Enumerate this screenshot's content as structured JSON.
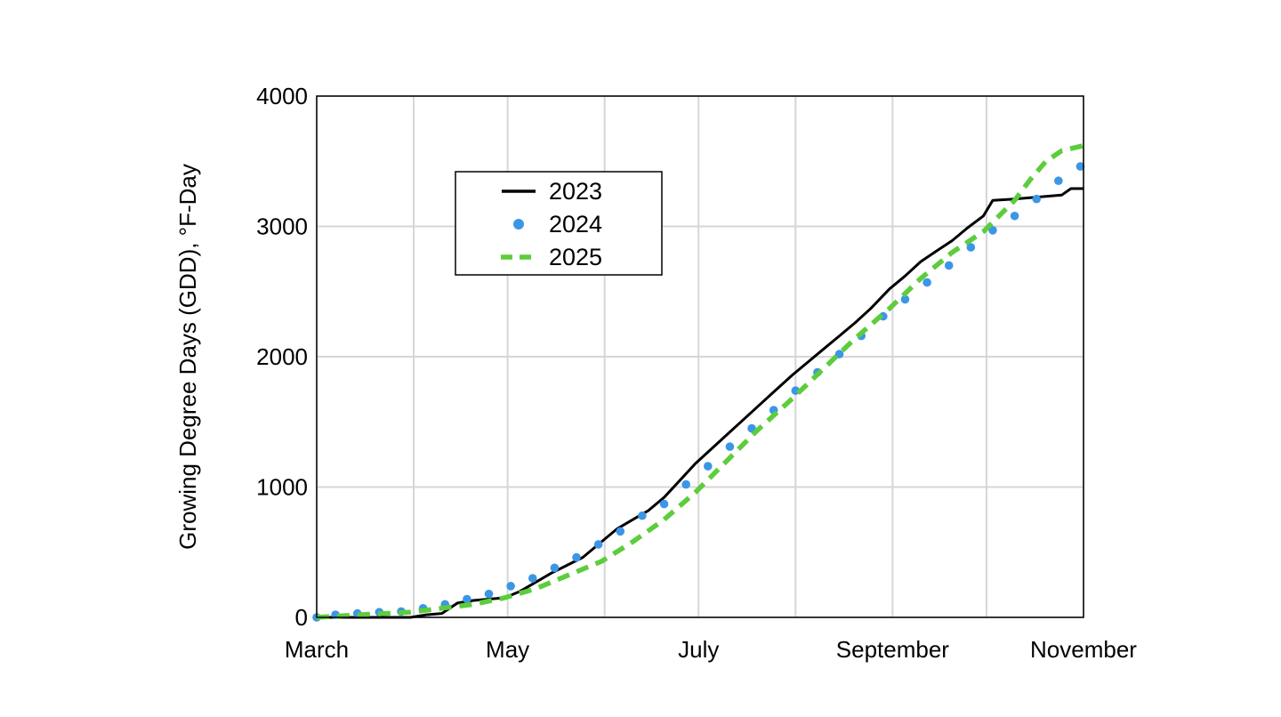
{
  "chart_data": {
    "type": "line",
    "title": "",
    "ylabel": "Growing Degree Days (GDD), °F-Day",
    "xlabel": "",
    "ylim": [
      0,
      4000
    ],
    "xlim": [
      "Mar 1",
      "Nov 1"
    ],
    "yticks": [
      0,
      1000,
      2000,
      3000,
      4000
    ],
    "xticks": [
      "March",
      "May",
      "July",
      "September",
      "November"
    ],
    "xtick_dates": [
      "Mar 1",
      "May 1",
      "Jul 1",
      "Sep 1",
      "Nov 1"
    ],
    "x_gridlines": [
      "Mar 1",
      "Apr 1",
      "May 1",
      "Jun 1",
      "Jul 1",
      "Aug 1",
      "Sep 1",
      "Oct 1",
      "Nov 1"
    ],
    "grid": true,
    "legend": {
      "position": "top-left",
      "entries": [
        "2023",
        "2024",
        "2025"
      ]
    },
    "series": [
      {
        "name": "2023",
        "style": "solid",
        "color": "#000000",
        "x": [
          "Mar 1",
          "Mar 10",
          "Mar 20",
          "Mar 31",
          "Apr 5",
          "Apr 10",
          "Apr 15",
          "Apr 20",
          "Apr 25",
          "Apr 30",
          "May 5",
          "May 10",
          "May 15",
          "May 20",
          "May 25",
          "May 31",
          "Jun 5",
          "Jun 10",
          "Jun 15",
          "Jun 20",
          "Jun 25",
          "Jun 30",
          "Jul 5",
          "Jul 10",
          "Jul 15",
          "Jul 20",
          "Jul 25",
          "Jul 31",
          "Aug 5",
          "Aug 10",
          "Aug 15",
          "Aug 20",
          "Aug 25",
          "Aug 31",
          "Sep 5",
          "Sep 10",
          "Sep 15",
          "Sep 20",
          "Sep 25",
          "Sep 30",
          "Oct 3",
          "Oct 10",
          "Oct 20",
          "Oct 25",
          "Oct 28",
          "Nov 1"
        ],
        "y": [
          0,
          0,
          0,
          0,
          20,
          30,
          110,
          130,
          140,
          150,
          200,
          270,
          340,
          400,
          460,
          580,
          680,
          750,
          820,
          920,
          1050,
          1180,
          1290,
          1400,
          1510,
          1620,
          1730,
          1860,
          1960,
          2060,
          2160,
          2260,
          2370,
          2520,
          2620,
          2730,
          2810,
          2890,
          2990,
          3080,
          3200,
          3210,
          3230,
          3240,
          3290,
          3290
        ]
      },
      {
        "name": "2024",
        "style": "dotted",
        "color": "#3c96e6",
        "x": [
          "Mar 1",
          "Mar 7",
          "Mar 14",
          "Mar 21",
          "Mar 28",
          "Apr 4",
          "Apr 11",
          "Apr 18",
          "Apr 25",
          "May 2",
          "May 9",
          "May 16",
          "May 23",
          "May 30",
          "Jun 6",
          "Jun 13",
          "Jun 20",
          "Jun 27",
          "Jul 4",
          "Jul 11",
          "Jul 18",
          "Jul 25",
          "Aug 1",
          "Aug 8",
          "Aug 15",
          "Aug 22",
          "Aug 29",
          "Sep 5",
          "Sep 12",
          "Sep 19",
          "Sep 26",
          "Oct 3",
          "Oct 10",
          "Oct 17",
          "Oct 24",
          "Oct 31"
        ],
        "y": [
          0,
          20,
          30,
          40,
          45,
          70,
          100,
          140,
          180,
          240,
          300,
          380,
          460,
          560,
          660,
          780,
          870,
          1020,
          1160,
          1310,
          1450,
          1590,
          1740,
          1880,
          2020,
          2160,
          2310,
          2440,
          2570,
          2700,
          2840,
          2970,
          3080,
          3210,
          3350,
          3460
        ]
      },
      {
        "name": "2025",
        "style": "dashed",
        "color": "#5ccd3c",
        "x": [
          "Mar 1",
          "Mar 15",
          "Mar 31",
          "Apr 10",
          "Apr 20",
          "Apr 30",
          "May 10",
          "May 20",
          "May 31",
          "Jun 10",
          "Jun 20",
          "Jun 30",
          "Jul 10",
          "Jul 20",
          "Jul 31",
          "Aug 10",
          "Aug 20",
          "Aug 31",
          "Sep 10",
          "Sep 20",
          "Sep 30",
          "Oct 5",
          "Oct 10",
          "Oct 15",
          "Oct 20",
          "Oct 25",
          "Nov 1"
        ],
        "y": [
          0,
          20,
          40,
          70,
          100,
          150,
          220,
          320,
          430,
          580,
          750,
          960,
          1200,
          1440,
          1680,
          1910,
          2140,
          2370,
          2600,
          2800,
          2960,
          3080,
          3200,
          3360,
          3500,
          3580,
          3620
        ]
      }
    ],
    "annotations": []
  }
}
